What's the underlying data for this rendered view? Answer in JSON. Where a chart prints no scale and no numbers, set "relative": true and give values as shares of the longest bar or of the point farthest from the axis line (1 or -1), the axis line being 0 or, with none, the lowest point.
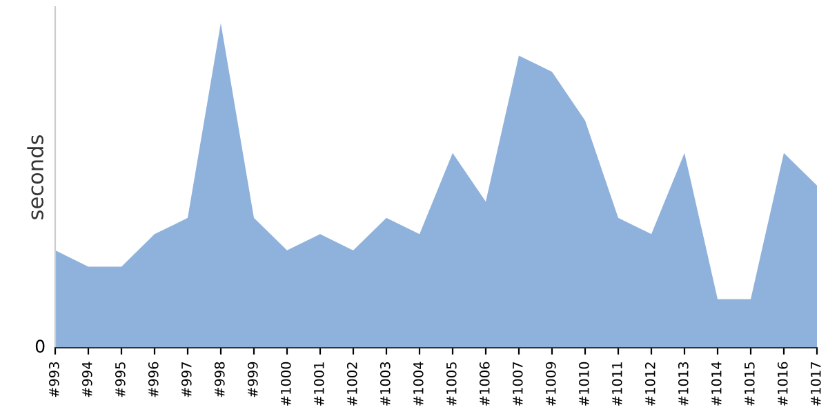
{
  "chart_data": {
    "type": "area",
    "ylabel": "seconds",
    "relative": true,
    "annotations": [
      "0"
    ],
    "color": "#8fb2dc",
    "grid": false,
    "legend": false,
    "categories": [
      "#993",
      "#994",
      "#995",
      "#996",
      "#997",
      "#998",
      "#999",
      "#1000",
      "#1001",
      "#1002",
      "#1003",
      "#1004",
      "#1005",
      "#1006",
      "#1007",
      "#1009",
      "#1010",
      "#1011",
      "#1012",
      "#1013",
      "#1014",
      "#1015",
      "#1016",
      "#1017"
    ],
    "values": [
      0.3,
      0.25,
      0.25,
      0.35,
      0.4,
      1,
      0.4,
      0.3,
      0.35,
      0.3,
      0.4,
      0.35,
      0.6,
      0.45,
      0.9,
      0.85,
      0.7,
      0.4,
      0.35,
      0.6,
      0.15,
      0.15,
      0.6,
      0.5
    ]
  }
}
